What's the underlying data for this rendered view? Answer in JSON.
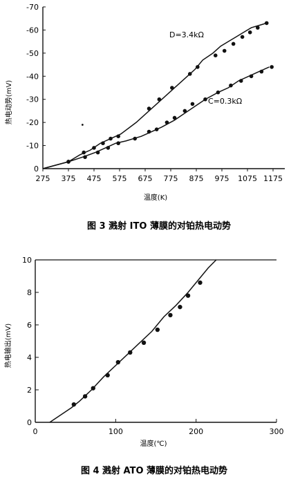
{
  "chart_data": [
    {
      "type": "line",
      "caption": "图 3  溅射 ITO 薄膜的对铂热电动势",
      "xlabel": "温度(K)",
      "ylabel": "热电动势(mV)",
      "x_ticks": [
        275,
        375,
        475,
        575,
        675,
        775,
        875,
        975,
        1075,
        1175
      ],
      "y_ticks": [
        0,
        -10,
        -20,
        -30,
        -40,
        -50,
        -60,
        -70
      ],
      "y_tick_labels": [
        "0",
        "-10",
        "-20",
        "-30",
        "-40",
        "-50",
        "-60",
        "-70"
      ],
      "xlim": [
        275,
        1205
      ],
      "ylim": [
        0,
        -70
      ],
      "series": [
        {
          "name": "D=3.4kΩ",
          "points": [
            [
              375,
              -3
            ],
            [
              420,
              -6
            ],
            [
              460,
              -8
            ],
            [
              500,
              -11
            ],
            [
              540,
              -13
            ],
            [
              580,
              -15
            ],
            [
              640,
              -20
            ],
            [
              690,
              -25
            ],
            [
              720,
              -28
            ],
            [
              760,
              -32
            ],
            [
              800,
              -36
            ],
            [
              840,
              -40
            ],
            [
              870,
              -43
            ],
            [
              900,
              -47
            ],
            [
              940,
              -50
            ],
            [
              970,
              -53
            ],
            [
              1000,
              -55
            ],
            [
              1030,
              -57
            ],
            [
              1060,
              -59
            ],
            [
              1090,
              -61
            ],
            [
              1120,
              -62
            ],
            [
              1150,
              -63
            ]
          ],
          "markers": [
            [
              375,
              -3
            ],
            [
              435,
              -7
            ],
            [
              475,
              -9
            ],
            [
              510,
              -11
            ],
            [
              540,
              -13
            ],
            [
              570,
              -14
            ],
            [
              690,
              -26
            ],
            [
              730,
              -30
            ],
            [
              780,
              -35
            ],
            [
              850,
              -41
            ],
            [
              880,
              -44
            ],
            [
              950,
              -49
            ],
            [
              985,
              -51
            ],
            [
              1020,
              -54
            ],
            [
              1055,
              -57
            ],
            [
              1085,
              -59
            ],
            [
              1115,
              -61
            ],
            [
              1150,
              -63
            ]
          ]
        },
        {
          "name": "C=0.3kΩ",
          "points": [
            [
              275,
              0
            ],
            [
              375,
              -3
            ],
            [
              430,
              -5
            ],
            [
              480,
              -7
            ],
            [
              520,
              -9
            ],
            [
              560,
              -11
            ],
            [
              600,
              -12
            ],
            [
              660,
              -14
            ],
            [
              700,
              -16
            ],
            [
              740,
              -18
            ],
            [
              790,
              -21
            ],
            [
              830,
              -24
            ],
            [
              870,
              -27
            ],
            [
              910,
              -30
            ],
            [
              960,
              -33
            ],
            [
              1000,
              -35
            ],
            [
              1040,
              -38
            ],
            [
              1080,
              -40
            ],
            [
              1120,
              -42
            ],
            [
              1160,
              -44
            ]
          ],
          "markers": [
            [
              375,
              -3
            ],
            [
              440,
              -5
            ],
            [
              490,
              -7
            ],
            [
              530,
              -9
            ],
            [
              570,
              -11
            ],
            [
              635,
              -13
            ],
            [
              690,
              -16
            ],
            [
              720,
              -17
            ],
            [
              760,
              -20
            ],
            [
              790,
              -22
            ],
            [
              830,
              -25
            ],
            [
              860,
              -28
            ],
            [
              910,
              -30
            ],
            [
              960,
              -33
            ],
            [
              1010,
              -36
            ],
            [
              1050,
              -38
            ],
            [
              1090,
              -40
            ],
            [
              1130,
              -42
            ],
            [
              1170,
              -44
            ]
          ]
        }
      ],
      "annotation_dot": [
        430,
        -19
      ]
    },
    {
      "type": "line",
      "caption": "图 4  溅射 ATO 薄膜的对铂热电动势",
      "xlabel": "温度(℃)",
      "ylabel": "热电输出(mV)",
      "x_ticks": [
        0,
        100,
        200,
        300
      ],
      "y_ticks": [
        0,
        2,
        4,
        6,
        8,
        10
      ],
      "xlim": [
        0,
        300
      ],
      "ylim": [
        0,
        10
      ],
      "series": [
        {
          "name": "",
          "points": [
            [
              18,
              0
            ],
            [
              30,
              0.4
            ],
            [
              45,
              0.9
            ],
            [
              55,
              1.3
            ],
            [
              70,
              2.0
            ],
            [
              85,
              2.8
            ],
            [
              100,
              3.5
            ],
            [
              115,
              4.2
            ],
            [
              130,
              4.9
            ],
            [
              145,
              5.6
            ],
            [
              160,
              6.5
            ],
            [
              175,
              7.2
            ],
            [
              190,
              8.0
            ],
            [
              205,
              8.9
            ],
            [
              215,
              9.5
            ],
            [
              225,
              10
            ]
          ],
          "markers": [
            [
              48,
              1.1
            ],
            [
              62,
              1.6
            ],
            [
              72,
              2.1
            ],
            [
              90,
              2.9
            ],
            [
              103,
              3.7
            ],
            [
              118,
              4.3
            ],
            [
              135,
              4.9
            ],
            [
              152,
              5.7
            ],
            [
              168,
              6.6
            ],
            [
              180,
              7.1
            ],
            [
              190,
              7.8
            ],
            [
              205,
              8.6
            ]
          ]
        }
      ]
    }
  ]
}
